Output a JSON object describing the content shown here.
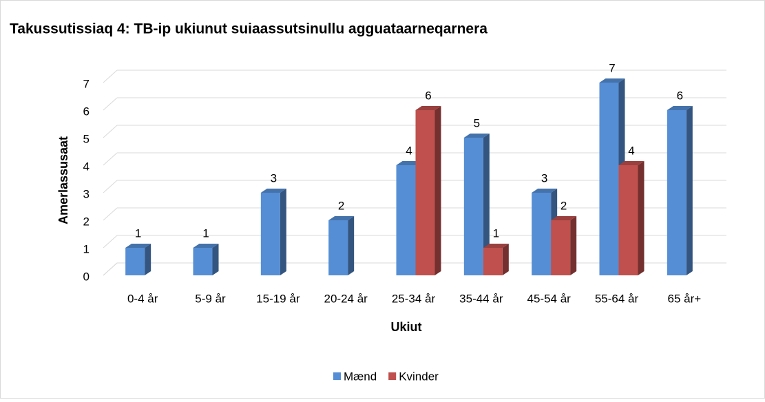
{
  "chart_data": {
    "type": "bar3d",
    "title": "Takussutissiaq 4: TB-ip ukiunut suiaassutsinullu agguataarneqarnera",
    "x_label": "Ukiut",
    "y_label": "Amerlassusaat",
    "categories": [
      "0-4 år",
      "5-9 år",
      "15-19 år",
      "20-24 år",
      "25-34 år",
      "35-44 år",
      "45-54 år",
      "55-64 år",
      "65 år+"
    ],
    "series": [
      {
        "name": "Mænd",
        "color": "#558ed5",
        "values": [
          1,
          1,
          3,
          2,
          4,
          5,
          3,
          7,
          6
        ]
      },
      {
        "name": "Kvinder",
        "color": "#c0504d",
        "values": [
          null,
          null,
          null,
          null,
          6,
          1,
          2,
          4,
          null
        ]
      }
    ],
    "ylim": [
      0,
      7
    ],
    "yticks": [
      0,
      1,
      2,
      3,
      4,
      5,
      6,
      7
    ],
    "grid": true,
    "legend": "bottom"
  }
}
